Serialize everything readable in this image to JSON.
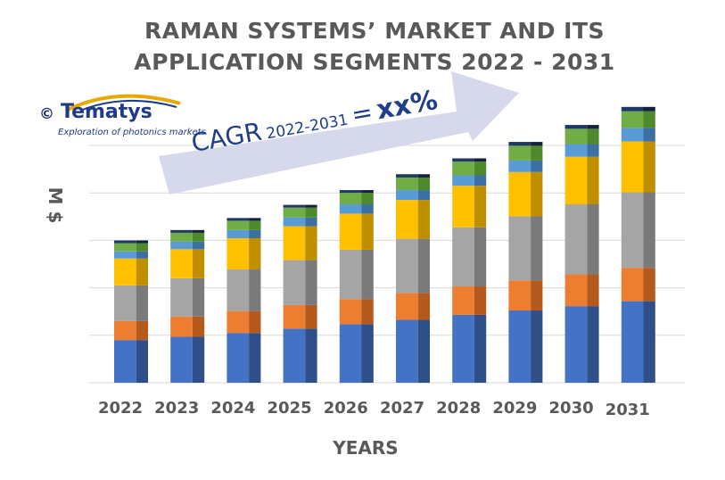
{
  "title_line1": "RAMAN SYSTEMS’ MARKET AND ITS",
  "title_line2": "APPLICATION  SEGMENTS  2022 - 2031",
  "logo": {
    "copyright": "©",
    "brand": "Tematys",
    "tagline": "Exploration of photonics markets"
  },
  "cagr": {
    "label": "CAGR",
    "period": "2022-2031",
    "equals": "=",
    "value": "xx%"
  },
  "chart_data": {
    "type": "bar",
    "stacked": true,
    "title": "RAMAN SYSTEMS’ MARKET AND ITS APPLICATION  SEGMENTS  2022 - 2031",
    "xlabel": "YEARS",
    "ylabel": "M $",
    "y_tick_labels_shown": false,
    "grid": true,
    "ylim": [
      0,
      5.2
    ],
    "categories": [
      "2022",
      "2023",
      "2024",
      "2025",
      "2026",
      "2027",
      "2028",
      "2029",
      "2030",
      "2031"
    ],
    "series": [
      {
        "color": "#4472c4",
        "shade": "#2f4f88",
        "values": [
          0.78,
          0.84,
          0.91,
          0.99,
          1.07,
          1.15,
          1.24,
          1.32,
          1.4,
          1.49
        ]
      },
      {
        "color": "#ed7d31",
        "shade": "#b55a1c",
        "values": [
          0.35,
          0.37,
          0.4,
          0.43,
          0.46,
          0.49,
          0.52,
          0.55,
          0.58,
          0.61
        ]
      },
      {
        "color": "#a5a5a5",
        "shade": "#7a7a7a",
        "values": [
          0.65,
          0.7,
          0.76,
          0.82,
          0.9,
          0.99,
          1.08,
          1.17,
          1.28,
          1.38
        ]
      },
      {
        "color": "#ffc000",
        "shade": "#c08f00",
        "values": [
          0.49,
          0.53,
          0.57,
          0.62,
          0.66,
          0.71,
          0.76,
          0.81,
          0.87,
          0.93
        ]
      },
      {
        "color": "#5b9bd5",
        "shade": "#3c70a3",
        "values": [
          0.13,
          0.14,
          0.15,
          0.16,
          0.17,
          0.18,
          0.19,
          0.21,
          0.23,
          0.25
        ]
      },
      {
        "color": "#70ad47",
        "shade": "#4e8a2b",
        "values": [
          0.15,
          0.16,
          0.17,
          0.18,
          0.21,
          0.23,
          0.25,
          0.27,
          0.28,
          0.3
        ]
      },
      {
        "color": "#203864",
        "shade": "#13213d",
        "values": [
          0.05,
          0.05,
          0.05,
          0.05,
          0.05,
          0.06,
          0.06,
          0.07,
          0.07,
          0.08
        ]
      }
    ]
  },
  "colors": {
    "title": "#595959",
    "axis_text": "#595959",
    "gridline": "#d9d9d9",
    "arrow_fill": "#d6d9ec",
    "cagr_text": "#1f3f8a",
    "brand": "#1f3a8a"
  }
}
